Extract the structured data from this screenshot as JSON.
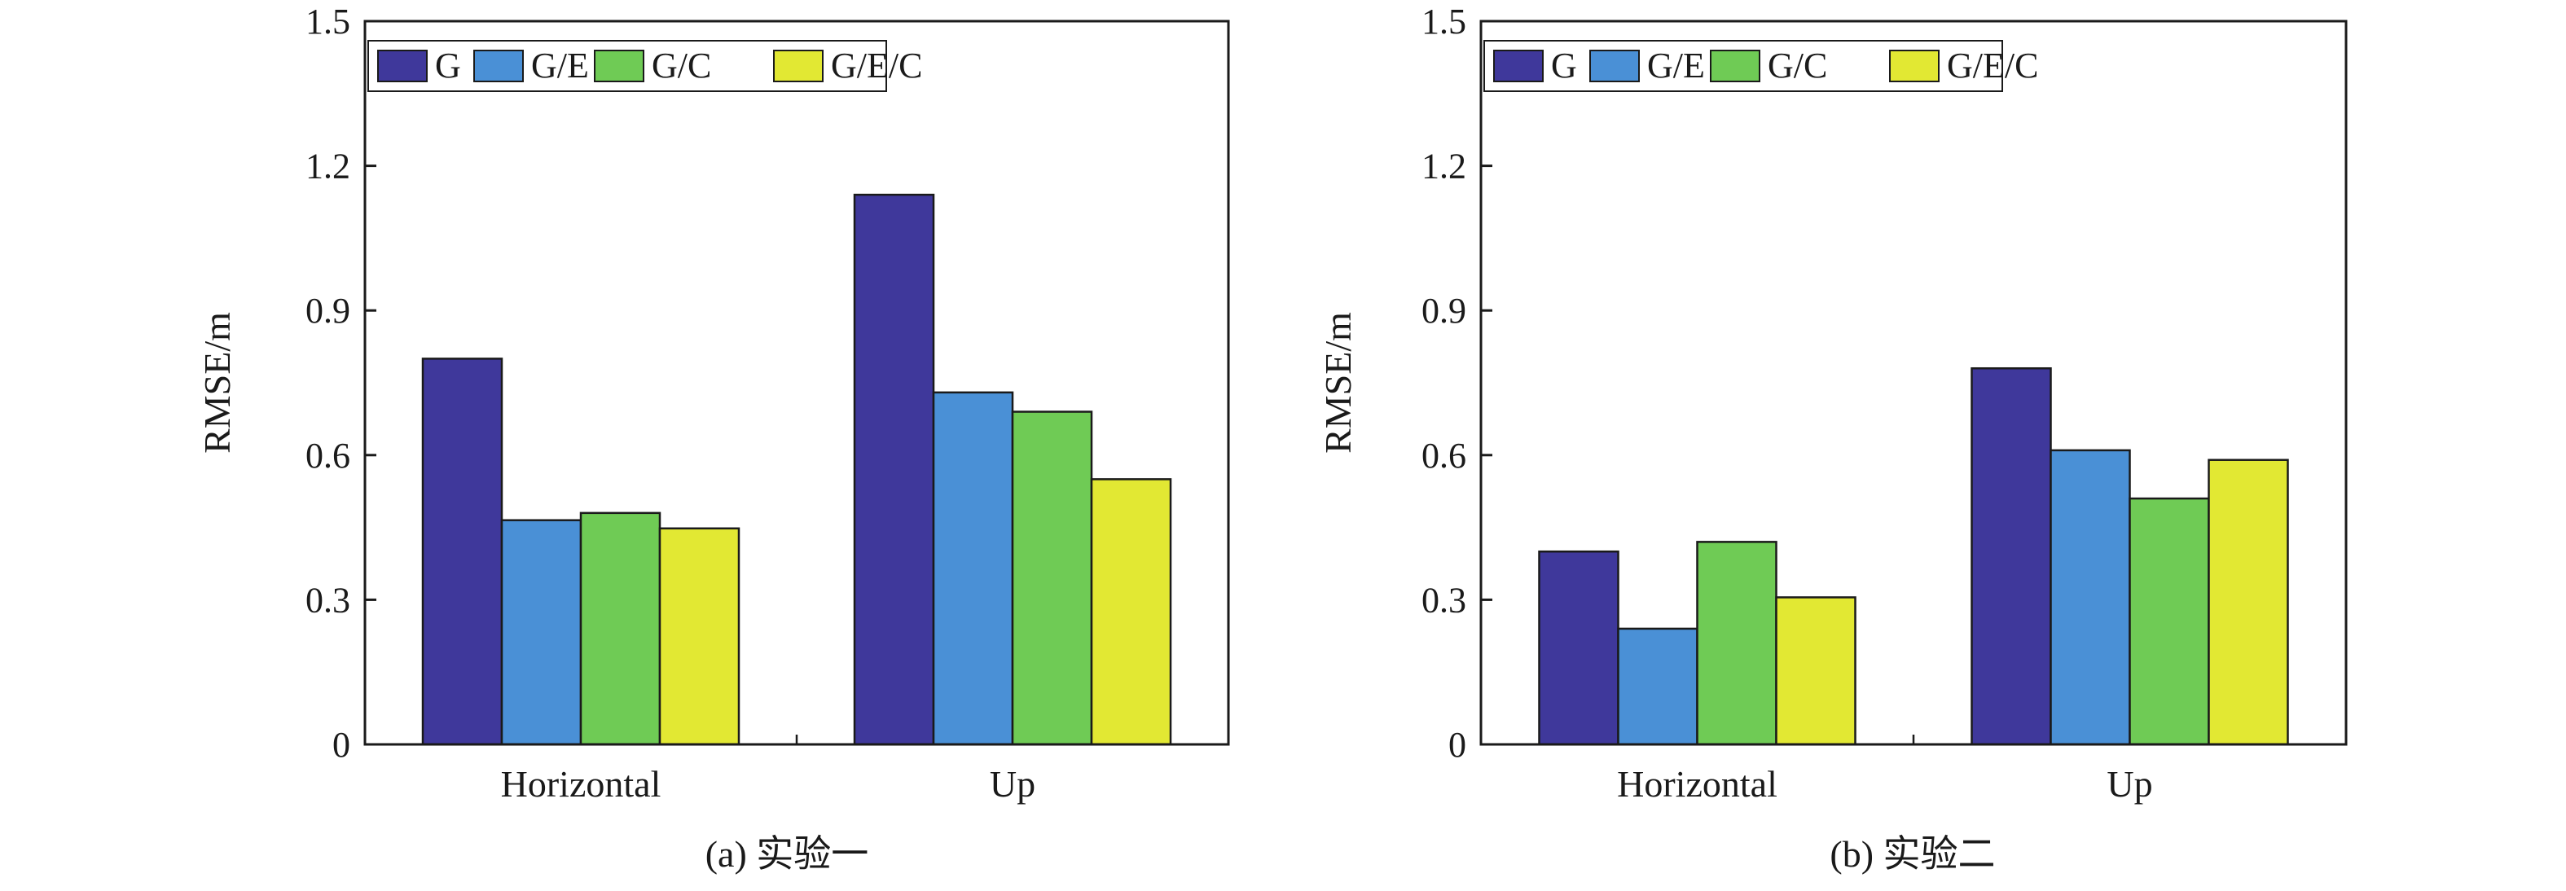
{
  "chart_data": [
    {
      "type": "bar",
      "caption": "(a) 实验一",
      "ylabel": "RMSE/m",
      "categories": [
        "Horizontal",
        "Up"
      ],
      "ylim": [
        0,
        1.5
      ],
      "yticks": [
        "0",
        "0.3",
        "0.6",
        "0.9",
        "1.2",
        "1.5"
      ],
      "legend_position": "top-left",
      "grid": false,
      "series": [
        {
          "name": "G",
          "values": [
            0.8,
            1.14
          ],
          "color": "#3f389b"
        },
        {
          "name": "G/E",
          "values": [
            0.465,
            0.73
          ],
          "color": "#4a90d6"
        },
        {
          "name": "G/C",
          "values": [
            0.48,
            0.69
          ],
          "color": "#6fcb55"
        },
        {
          "name": "G/E/C",
          "values": [
            0.448,
            0.55
          ],
          "color": "#e2e833"
        }
      ]
    },
    {
      "type": "bar",
      "caption": "(b) 实验二",
      "ylabel": "RMSE/m",
      "categories": [
        "Horizontal",
        "Up"
      ],
      "ylim": [
        0,
        1.5
      ],
      "yticks": [
        "0",
        "0.3",
        "0.6",
        "0.9",
        "1.2",
        "1.5"
      ],
      "legend_position": "top-left",
      "grid": false,
      "series": [
        {
          "name": "G",
          "values": [
            0.4,
            0.78
          ],
          "color": "#3f389b"
        },
        {
          "name": "G/E",
          "values": [
            0.24,
            0.61
          ],
          "color": "#4a90d6"
        },
        {
          "name": "G/C",
          "values": [
            0.42,
            0.51
          ],
          "color": "#6fcb55"
        },
        {
          "name": "G/E/C",
          "values": [
            0.305,
            0.59
          ],
          "color": "#e2e833"
        }
      ]
    }
  ]
}
